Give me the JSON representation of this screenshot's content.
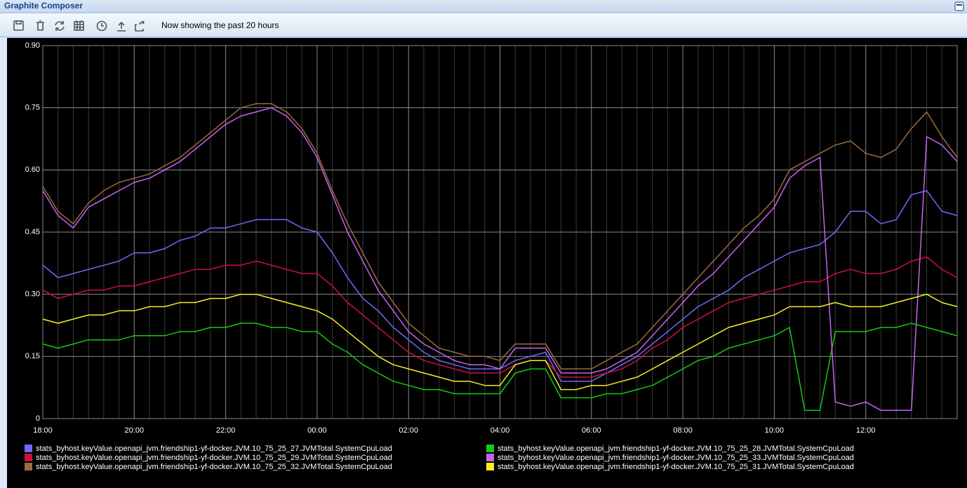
{
  "header": {
    "title": "Graphite Composer"
  },
  "toolbar": {
    "status": "Now showing the past 20 hours"
  },
  "chart_data": {
    "type": "line",
    "categories": [
      "18:00",
      null,
      null,
      null,
      null,
      null,
      "20:00",
      null,
      null,
      null,
      null,
      null,
      "22:00",
      null,
      null,
      null,
      null,
      null,
      "00:00",
      null,
      null,
      null,
      null,
      null,
      "02:00",
      null,
      null,
      null,
      null,
      null,
      "04:00",
      null,
      null,
      null,
      null,
      null,
      "06:00",
      null,
      null,
      null,
      null,
      null,
      "08:00",
      null,
      null,
      null,
      null,
      null,
      "10:00",
      null,
      null,
      null,
      null,
      null,
      "12:00",
      null,
      null,
      null,
      null,
      null,
      null
    ],
    "ylim": [
      0,
      0.9
    ],
    "yticks": [
      0,
      0.15,
      {
        "value": 0.3,
        "label": "0.30"
      },
      0.45,
      {
        "value": 0.6,
        "label": "0.60"
      },
      0.75,
      {
        "value": 0.9,
        "label": "0.90"
      }
    ],
    "grid": true,
    "legend": "bottom",
    "series": [
      {
        "name": "stats_byhost.keyValue.openapi_jvm.friendship1-yf-docker.JVM.10_75_25_27.JVMTotal.SystemCpuLoad",
        "color": "#6b6bff",
        "values": [
          0.37,
          0.34,
          0.35,
          0.36,
          0.37,
          0.38,
          0.4,
          0.4,
          0.41,
          0.43,
          0.44,
          0.46,
          0.46,
          0.47,
          0.48,
          0.48,
          0.48,
          0.46,
          0.45,
          0.4,
          0.34,
          0.29,
          0.26,
          0.22,
          0.19,
          0.16,
          0.14,
          0.13,
          0.12,
          0.12,
          0.12,
          0.14,
          0.15,
          0.16,
          0.09,
          0.09,
          0.09,
          0.11,
          0.13,
          0.15,
          0.18,
          0.21,
          0.24,
          0.27,
          0.29,
          0.31,
          0.34,
          0.36,
          0.38,
          0.4,
          0.41,
          0.42,
          0.45,
          0.5,
          0.5,
          0.47,
          0.48,
          0.54,
          0.55,
          0.5,
          0.49
        ]
      },
      {
        "name": "stats_byhost.keyValue.openapi_jvm.friendship1-yf-docker.JVM.10_75_25_29.JVMTotal.SystemCpuLoad",
        "color": "#d0103c",
        "values": [
          0.31,
          0.29,
          0.3,
          0.31,
          0.31,
          0.32,
          0.32,
          0.33,
          0.34,
          0.35,
          0.36,
          0.36,
          0.37,
          0.37,
          0.38,
          0.37,
          0.36,
          0.35,
          0.35,
          0.32,
          0.28,
          0.25,
          0.22,
          0.19,
          0.16,
          0.14,
          0.13,
          0.12,
          0.11,
          0.11,
          0.11,
          0.13,
          0.14,
          0.14,
          0.1,
          0.1,
          0.1,
          0.11,
          0.12,
          0.14,
          0.17,
          0.19,
          0.22,
          0.24,
          0.26,
          0.28,
          0.29,
          0.3,
          0.31,
          0.32,
          0.33,
          0.33,
          0.35,
          0.36,
          0.35,
          0.35,
          0.36,
          0.38,
          0.39,
          0.36,
          0.34
        ]
      },
      {
        "name": "stats_byhost.keyValue.openapi_jvm.friendship1-yf-docker.JVM.10_75_25_32.JVMTotal.SystemCpuLoad",
        "color": "#9c6b3c",
        "values": [
          0.56,
          0.5,
          0.47,
          0.52,
          0.55,
          0.57,
          0.58,
          0.59,
          0.61,
          0.63,
          0.66,
          0.69,
          0.72,
          0.75,
          0.76,
          0.76,
          0.74,
          0.7,
          0.64,
          0.55,
          0.47,
          0.4,
          0.33,
          0.28,
          0.23,
          0.2,
          0.17,
          0.16,
          0.15,
          0.15,
          0.14,
          0.18,
          0.18,
          0.18,
          0.12,
          0.12,
          0.12,
          0.14,
          0.16,
          0.18,
          0.22,
          0.26,
          0.3,
          0.34,
          0.38,
          0.42,
          0.46,
          0.49,
          0.53,
          0.6,
          0.62,
          0.64,
          0.66,
          0.67,
          0.64,
          0.63,
          0.65,
          0.7,
          0.74,
          0.68,
          0.63
        ]
      },
      {
        "name": "stats_byhost.keyValue.openapi_jvm.friendship1-yf-docker.JVM.10_75_25_28.JVMTotal.SystemCpuLoad",
        "color": "#14c814",
        "values": [
          0.18,
          0.17,
          0.18,
          0.19,
          0.19,
          0.19,
          0.2,
          0.2,
          0.2,
          0.21,
          0.21,
          0.22,
          0.22,
          0.23,
          0.23,
          0.22,
          0.22,
          0.21,
          0.21,
          0.18,
          0.16,
          0.13,
          0.11,
          0.09,
          0.08,
          0.07,
          0.07,
          0.06,
          0.06,
          0.06,
          0.06,
          0.11,
          0.12,
          0.12,
          0.05,
          0.05,
          0.05,
          0.06,
          0.06,
          0.07,
          0.08,
          0.1,
          0.12,
          0.14,
          0.15,
          0.17,
          0.18,
          0.19,
          0.2,
          0.22,
          0.02,
          0.02,
          0.21,
          0.21,
          0.21,
          0.22,
          0.22,
          0.23,
          0.22,
          0.21,
          0.2
        ]
      },
      {
        "name": "stats_byhost.keyValue.openapi_jvm.friendship1-yf-docker.JVM.10_75_25_33.JVMTotal.SystemCpuLoad",
        "color": "#c664f0",
        "values": [
          0.55,
          0.49,
          0.46,
          0.51,
          0.53,
          0.55,
          0.57,
          0.58,
          0.6,
          0.62,
          0.65,
          0.68,
          0.71,
          0.73,
          0.74,
          0.75,
          0.73,
          0.69,
          0.63,
          0.54,
          0.45,
          0.38,
          0.31,
          0.26,
          0.21,
          0.18,
          0.16,
          0.14,
          0.13,
          0.13,
          0.12,
          0.17,
          0.17,
          0.17,
          0.11,
          0.11,
          0.11,
          0.12,
          0.14,
          0.16,
          0.2,
          0.24,
          0.28,
          0.32,
          0.35,
          0.39,
          0.43,
          0.47,
          0.51,
          0.58,
          0.61,
          0.63,
          0.04,
          0.03,
          0.04,
          0.02,
          0.02,
          0.02,
          0.68,
          0.66,
          0.62
        ]
      },
      {
        "name": "stats_byhost.keyValue.openapi_jvm.friendship1-yf-docker.JVM.10_75_25_31.JVMTotal.SystemCpuLoad",
        "color": "#f5f01e",
        "values": [
          0.24,
          0.23,
          0.24,
          0.25,
          0.25,
          0.26,
          0.26,
          0.27,
          0.27,
          0.28,
          0.28,
          0.29,
          0.29,
          0.3,
          0.3,
          0.29,
          0.28,
          0.27,
          0.26,
          0.24,
          0.21,
          0.18,
          0.15,
          0.13,
          0.12,
          0.11,
          0.1,
          0.09,
          0.09,
          0.08,
          0.08,
          0.13,
          0.14,
          0.14,
          0.07,
          0.07,
          0.08,
          0.08,
          0.09,
          0.1,
          0.12,
          0.14,
          0.16,
          0.18,
          0.2,
          0.22,
          0.23,
          0.24,
          0.25,
          0.27,
          0.27,
          0.27,
          0.28,
          0.27,
          0.27,
          0.27,
          0.28,
          0.29,
          0.3,
          0.28,
          0.27
        ]
      }
    ]
  }
}
